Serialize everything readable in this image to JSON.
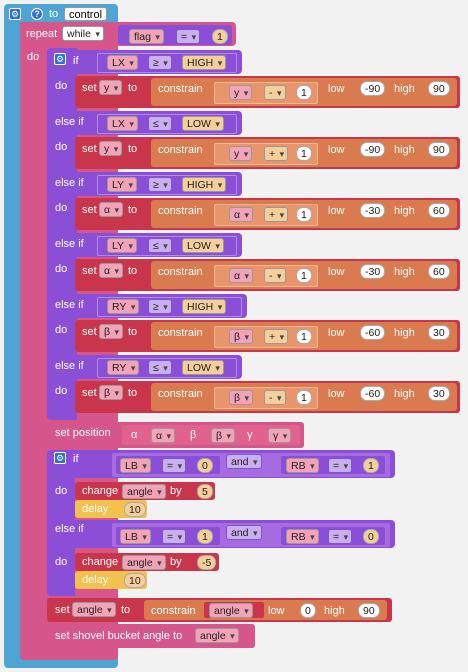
{
  "header": {
    "to": "to",
    "name": "control"
  },
  "repeat": {
    "label": "repeat",
    "mode": "while",
    "do": "do",
    "cond": {
      "var": "flag",
      "op": "=",
      "val": "1"
    }
  },
  "kw": {
    "if": "if",
    "elseif": "else if",
    "do": "do",
    "set": "set",
    "to": "to",
    "constrain": "constrain",
    "low": "low",
    "high": "high",
    "and": "and",
    "change": "change",
    "by": "by",
    "delay": "delay"
  },
  "branches": [
    {
      "cvar": "LX",
      "cop": "≥",
      "cval": "HIGH",
      "svar": "y",
      "evar": "y",
      "eop": "-",
      "eval": "1",
      "low": "-90",
      "high": "90"
    },
    {
      "cvar": "LX",
      "cop": "≤",
      "cval": "LOW",
      "svar": "y",
      "evar": "y",
      "eop": "+",
      "eval": "1",
      "low": "-90",
      "high": "90"
    },
    {
      "cvar": "LY",
      "cop": "≥",
      "cval": "HIGH",
      "svar": "α",
      "evar": "α",
      "eop": "+",
      "eval": "1",
      "low": "-30",
      "high": "60"
    },
    {
      "cvar": "LY",
      "cop": "≤",
      "cval": "LOW",
      "svar": "α",
      "evar": "α",
      "eop": "-",
      "eval": "1",
      "low": "-30",
      "high": "60"
    },
    {
      "cvar": "RY",
      "cop": "≥",
      "cval": "HIGH",
      "svar": "β",
      "evar": "β",
      "eop": "+",
      "eval": "1",
      "low": "-60",
      "high": "30"
    },
    {
      "cvar": "RY",
      "cop": "≤",
      "cval": "LOW",
      "svar": "β",
      "evar": "β",
      "eop": "-",
      "eval": "1",
      "low": "-60",
      "high": "30"
    }
  ],
  "setpos": {
    "label": "set position",
    "a": "α",
    "av": "α",
    "b": "β",
    "bv": "β",
    "g": "γ",
    "gv": "γ"
  },
  "if2": {
    "c1": {
      "lv": "LB",
      "lo": "=",
      "ln": "0",
      "and": "and",
      "rv": "RB",
      "ro": "=",
      "rn": "1"
    },
    "do1": {
      "var": "angle",
      "by": "5",
      "delay": "10"
    },
    "c2": {
      "lv": "LB",
      "lo": "=",
      "ln": "1",
      "and": "and",
      "rv": "RB",
      "ro": "=",
      "rn": "0"
    },
    "do2": {
      "var": "angle",
      "by": "-5",
      "delay": "10"
    }
  },
  "setangle": {
    "var": "angle",
    "cvar": "angle",
    "low": "0",
    "high": "90"
  },
  "shovel": {
    "label": "set shovel bucket angle to",
    "var": "angle"
  }
}
